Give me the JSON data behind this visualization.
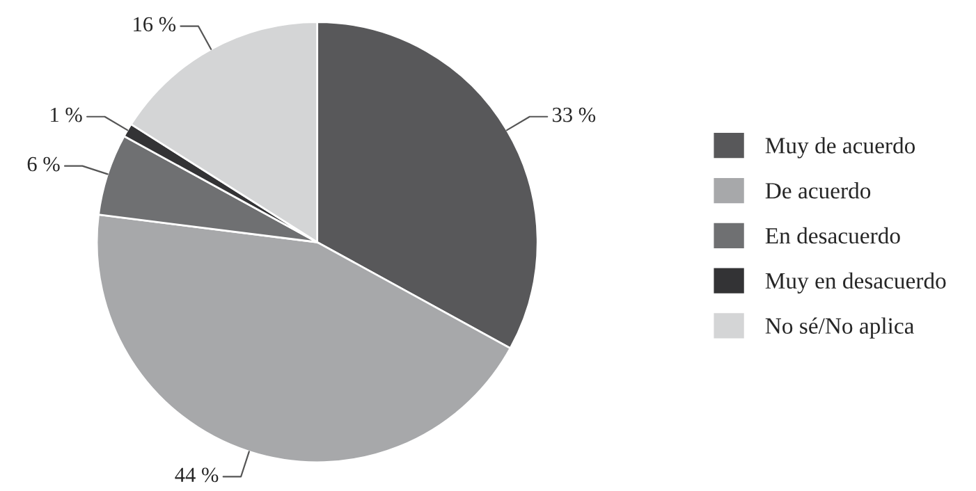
{
  "chart_data": {
    "type": "pie",
    "categories": [
      "Muy de acuerdo",
      "De acuerdo",
      "En desacuerdo",
      "Muy en desacuerdo",
      "No sé/No aplica"
    ],
    "values": [
      33,
      44,
      6,
      1,
      16
    ],
    "colors": [
      "#58585a",
      "#a7a8aa",
      "#6f7072",
      "#333335",
      "#d4d5d6"
    ],
    "value_labels": [
      "33 %",
      "44 %",
      "6 %",
      "1 %",
      "16 %"
    ],
    "legend": "right"
  }
}
